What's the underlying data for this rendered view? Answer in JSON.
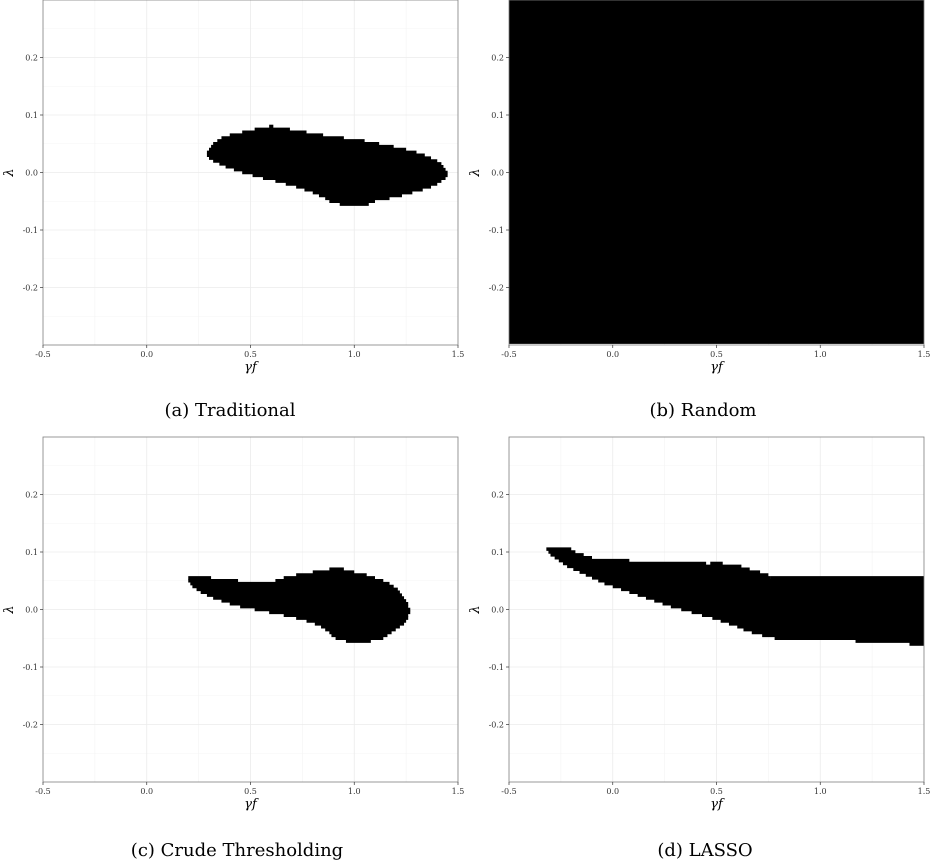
{
  "chart_data": [
    {
      "type": "scatter",
      "caption": "(a) Traditional",
      "xlabel": "γf",
      "ylabel": "λ",
      "xlim": [
        -0.5,
        1.5
      ],
      "ylim": [
        -0.3,
        0.3
      ],
      "x_ticks": [
        -0.5,
        0.0,
        0.5,
        1.0,
        1.5
      ],
      "x_tick_labels": [
        "-0.5",
        "0.0",
        "0.5",
        "1.0",
        "1.5"
      ],
      "y_ticks": [
        -0.2,
        -0.1,
        0.0,
        0.1,
        0.2
      ],
      "y_tick_labels": [
        "-0.2",
        "-0.1",
        "0.0",
        "0.1",
        "0.2"
      ],
      "grid": true,
      "rows": [
        {
          "y": 0.08,
          "x0": 0.59,
          "x1": 0.61
        },
        {
          "y": 0.075,
          "x0": 0.52,
          "x1": 0.69
        },
        {
          "y": 0.07,
          "x0": 0.46,
          "x1": 0.77
        },
        {
          "y": 0.065,
          "x0": 0.4,
          "x1": 0.85
        },
        {
          "y": 0.06,
          "x0": 0.36,
          "x1": 0.95
        },
        {
          "y": 0.055,
          "x0": 0.34,
          "x1": 1.05
        },
        {
          "y": 0.05,
          "x0": 0.32,
          "x1": 1.12
        },
        {
          "y": 0.045,
          "x0": 0.31,
          "x1": 1.19
        },
        {
          "y": 0.04,
          "x0": 0.3,
          "x1": 1.25
        },
        {
          "y": 0.035,
          "x0": 0.29,
          "x1": 1.3
        },
        {
          "y": 0.03,
          "x0": 0.29,
          "x1": 1.34
        },
        {
          "y": 0.025,
          "x0": 0.3,
          "x1": 1.37
        },
        {
          "y": 0.02,
          "x0": 0.32,
          "x1": 1.4
        },
        {
          "y": 0.015,
          "x0": 0.35,
          "x1": 1.42
        },
        {
          "y": 0.01,
          "x0": 0.38,
          "x1": 1.43
        },
        {
          "y": 0.005,
          "x0": 0.42,
          "x1": 1.44
        },
        {
          "y": 0.0,
          "x0": 0.46,
          "x1": 1.45
        },
        {
          "y": -0.005,
          "x0": 0.51,
          "x1": 1.45
        },
        {
          "y": -0.01,
          "x0": 0.56,
          "x1": 1.44
        },
        {
          "y": -0.015,
          "x0": 0.62,
          "x1": 1.42
        },
        {
          "y": -0.02,
          "x0": 0.67,
          "x1": 1.4
        },
        {
          "y": -0.025,
          "x0": 0.72,
          "x1": 1.37
        },
        {
          "y": -0.03,
          "x0": 0.76,
          "x1": 1.33
        },
        {
          "y": -0.035,
          "x0": 0.8,
          "x1": 1.28
        },
        {
          "y": -0.04,
          "x0": 0.83,
          "x1": 1.23
        },
        {
          "y": -0.045,
          "x0": 0.86,
          "x1": 1.17
        },
        {
          "y": -0.05,
          "x0": 0.88,
          "x1": 1.1
        },
        {
          "y": -0.055,
          "x0": 0.93,
          "x1": 1.07
        }
      ]
    },
    {
      "type": "scatter",
      "caption": "(b) Random",
      "xlabel": "γf",
      "ylabel": "λ",
      "xlim": [
        -0.5,
        1.5
      ],
      "ylim": [
        -0.3,
        0.3
      ],
      "x_ticks": [
        -0.5,
        0.0,
        0.5,
        1.0,
        1.5
      ],
      "x_tick_labels": [
        "-0.5",
        "0.0",
        "0.5",
        "1.0",
        "1.5"
      ],
      "y_ticks": [
        -0.2,
        -0.1,
        0.0,
        0.1,
        0.2
      ],
      "y_tick_labels": [
        "-0.2",
        "-0.1",
        "0.0",
        "0.1",
        "0.2"
      ],
      "grid": true,
      "fill_all": {
        "x0": -0.5,
        "x1": 1.5,
        "y0": -0.295,
        "y1": 0.3,
        "step": 0.005
      }
    },
    {
      "type": "scatter",
      "caption": "(c) Crude Thresholding",
      "xlabel": "γf",
      "ylabel": "λ",
      "xlim": [
        -0.5,
        1.5
      ],
      "ylim": [
        -0.3,
        0.3
      ],
      "x_ticks": [
        -0.5,
        0.0,
        0.5,
        1.0,
        1.5
      ],
      "x_tick_labels": [
        "-0.5",
        "0.0",
        "0.5",
        "1.0",
        "1.5"
      ],
      "y_ticks": [
        -0.2,
        -0.1,
        0.0,
        0.1,
        0.2
      ],
      "y_tick_labels": [
        "-0.2",
        "-0.1",
        "0.0",
        "0.1",
        "0.2"
      ],
      "grid": true,
      "rows": [
        {
          "y": 0.07,
          "x0": 0.88,
          "x1": 0.95
        },
        {
          "y": 0.065,
          "x0": 0.8,
          "x1": 1.0
        },
        {
          "y": 0.06,
          "x0": 0.72,
          "x1": 1.06
        },
        {
          "y": 0.055,
          "x0": 0.2,
          "x1": 0.31
        },
        {
          "y": 0.055,
          "x0": 0.66,
          "x1": 1.1
        },
        {
          "y": 0.05,
          "x0": 0.2,
          "x1": 0.44
        },
        {
          "y": 0.05,
          "x0": 0.62,
          "x1": 1.14
        },
        {
          "y": 0.045,
          "x0": 0.21,
          "x1": 1.17
        },
        {
          "y": 0.04,
          "x0": 0.22,
          "x1": 1.19
        },
        {
          "y": 0.035,
          "x0": 0.24,
          "x1": 1.21
        },
        {
          "y": 0.03,
          "x0": 0.26,
          "x1": 1.22
        },
        {
          "y": 0.025,
          "x0": 0.29,
          "x1": 1.23
        },
        {
          "y": 0.02,
          "x0": 0.32,
          "x1": 1.24
        },
        {
          "y": 0.015,
          "x0": 0.36,
          "x1": 1.25
        },
        {
          "y": 0.01,
          "x0": 0.4,
          "x1": 1.26
        },
        {
          "y": 0.005,
          "x0": 0.45,
          "x1": 1.26
        },
        {
          "y": 0.0,
          "x0": 0.52,
          "x1": 1.27
        },
        {
          "y": -0.005,
          "x0": 0.59,
          "x1": 1.27
        },
        {
          "y": -0.01,
          "x0": 0.66,
          "x1": 1.26
        },
        {
          "y": -0.015,
          "x0": 0.72,
          "x1": 1.26
        },
        {
          "y": -0.02,
          "x0": 0.77,
          "x1": 1.25
        },
        {
          "y": -0.025,
          "x0": 0.81,
          "x1": 1.24
        },
        {
          "y": -0.03,
          "x0": 0.84,
          "x1": 1.22
        },
        {
          "y": -0.035,
          "x0": 0.86,
          "x1": 1.2
        },
        {
          "y": -0.04,
          "x0": 0.88,
          "x1": 1.18
        },
        {
          "y": -0.045,
          "x0": 0.89,
          "x1": 1.16
        },
        {
          "y": -0.05,
          "x0": 0.91,
          "x1": 1.14
        },
        {
          "y": -0.055,
          "x0": 0.96,
          "x1": 1.08
        }
      ]
    },
    {
      "type": "scatter",
      "caption": "(d) LASSO",
      "xlabel": "γf",
      "ylabel": "λ",
      "xlim": [
        -0.5,
        1.5
      ],
      "ylim": [
        -0.3,
        0.3
      ],
      "x_ticks": [
        -0.5,
        0.0,
        0.5,
        1.0,
        1.5
      ],
      "x_tick_labels": [
        "-0.5",
        "0.0",
        "0.5",
        "1.0",
        "1.5"
      ],
      "y_ticks": [
        -0.2,
        -0.1,
        0.0,
        0.1,
        0.2
      ],
      "y_tick_labels": [
        "-0.2",
        "-0.1",
        "0.0",
        "0.1",
        "0.2"
      ],
      "grid": true,
      "rows": [
        {
          "y": 0.105,
          "x0": -0.32,
          "x1": -0.2
        },
        {
          "y": 0.1,
          "x0": -0.31,
          "x1": -0.18
        },
        {
          "y": 0.095,
          "x0": -0.3,
          "x1": -0.14
        },
        {
          "y": 0.09,
          "x0": -0.28,
          "x1": -0.1
        },
        {
          "y": 0.085,
          "x0": -0.26,
          "x1": 0.08
        },
        {
          "y": 0.08,
          "x0": -0.24,
          "x1": 0.45
        },
        {
          "y": 0.08,
          "x0": 0.47,
          "x1": 0.53
        },
        {
          "y": 0.075,
          "x0": -0.22,
          "x1": 0.62
        },
        {
          "y": 0.07,
          "x0": -0.19,
          "x1": 0.66
        },
        {
          "y": 0.065,
          "x0": -0.16,
          "x1": 0.71
        },
        {
          "y": 0.06,
          "x0": -0.13,
          "x1": 0.75
        },
        {
          "y": 0.055,
          "x0": -0.1,
          "x1": 0.76
        },
        {
          "y": 0.055,
          "x0": 0.76,
          "x1": 1.5
        },
        {
          "y": 0.05,
          "x0": -0.07,
          "x1": 1.5
        },
        {
          "y": 0.045,
          "x0": -0.04,
          "x1": 1.5
        },
        {
          "y": 0.04,
          "x0": 0.0,
          "x1": 1.5
        },
        {
          "y": 0.035,
          "x0": 0.04,
          "x1": 1.5
        },
        {
          "y": 0.03,
          "x0": 0.08,
          "x1": 1.5
        },
        {
          "y": 0.025,
          "x0": 0.12,
          "x1": 1.5
        },
        {
          "y": 0.02,
          "x0": 0.16,
          "x1": 1.5
        },
        {
          "y": 0.015,
          "x0": 0.2,
          "x1": 1.5
        },
        {
          "y": 0.01,
          "x0": 0.24,
          "x1": 1.5
        },
        {
          "y": 0.005,
          "x0": 0.28,
          "x1": 1.5
        },
        {
          "y": 0.0,
          "x0": 0.33,
          "x1": 1.5
        },
        {
          "y": -0.005,
          "x0": 0.38,
          "x1": 1.5
        },
        {
          "y": -0.01,
          "x0": 0.43,
          "x1": 1.5
        },
        {
          "y": -0.015,
          "x0": 0.48,
          "x1": 1.5
        },
        {
          "y": -0.02,
          "x0": 0.52,
          "x1": 1.5
        },
        {
          "y": -0.025,
          "x0": 0.56,
          "x1": 1.5
        },
        {
          "y": -0.03,
          "x0": 0.6,
          "x1": 1.5
        },
        {
          "y": -0.035,
          "x0": 0.63,
          "x1": 1.5
        },
        {
          "y": -0.04,
          "x0": 0.67,
          "x1": 1.5
        },
        {
          "y": -0.045,
          "x0": 0.72,
          "x1": 1.5
        },
        {
          "y": -0.05,
          "x0": 0.78,
          "x1": 1.5
        },
        {
          "y": -0.055,
          "x0": 1.17,
          "x1": 1.5
        },
        {
          "y": -0.06,
          "x0": 1.43,
          "x1": 1.5
        }
      ]
    }
  ]
}
